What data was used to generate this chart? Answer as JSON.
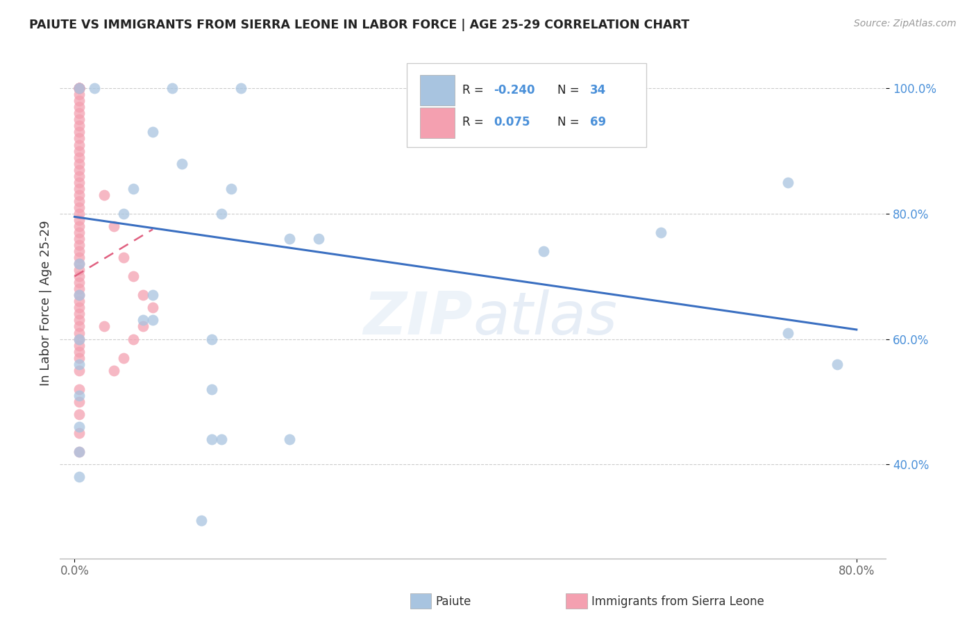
{
  "title": "PAIUTE VS IMMIGRANTS FROM SIERRA LEONE IN LABOR FORCE | AGE 25-29 CORRELATION CHART",
  "source": "Source: ZipAtlas.com",
  "ylabel": "In Labor Force | Age 25-29",
  "blue_color": "#a8c4e0",
  "pink_color": "#f4a0b0",
  "trendline_blue_color": "#3a6fc1",
  "trendline_pink_color": "#e06080",
  "watermark_color": "#d8e8f5",
  "grid_color": "#cccccc",
  "background_color": "#ffffff",
  "ytick_color": "#4a90d9",
  "xtick_color": "#666666",
  "blue_scatter": [
    [
      0.005,
      1.0
    ],
    [
      0.02,
      1.0
    ],
    [
      0.1,
      1.0
    ],
    [
      0.17,
      1.0
    ],
    [
      0.08,
      0.93
    ],
    [
      0.11,
      0.88
    ],
    [
      0.06,
      0.84
    ],
    [
      0.16,
      0.84
    ],
    [
      0.05,
      0.8
    ],
    [
      0.15,
      0.8
    ],
    [
      0.22,
      0.76
    ],
    [
      0.25,
      0.76
    ],
    [
      0.005,
      0.72
    ],
    [
      0.005,
      0.67
    ],
    [
      0.08,
      0.67
    ],
    [
      0.07,
      0.63
    ],
    [
      0.08,
      0.63
    ],
    [
      0.005,
      0.6
    ],
    [
      0.14,
      0.6
    ],
    [
      0.005,
      0.56
    ],
    [
      0.005,
      0.51
    ],
    [
      0.005,
      0.46
    ],
    [
      0.14,
      0.44
    ],
    [
      0.15,
      0.44
    ],
    [
      0.22,
      0.44
    ],
    [
      0.005,
      0.42
    ],
    [
      0.14,
      0.52
    ],
    [
      0.48,
      0.74
    ],
    [
      0.6,
      0.77
    ],
    [
      0.73,
      0.85
    ],
    [
      0.005,
      0.38
    ],
    [
      0.13,
      0.31
    ],
    [
      0.73,
      0.61
    ],
    [
      0.78,
      0.56
    ]
  ],
  "pink_scatter": [
    [
      0.005,
      1.0
    ],
    [
      0.005,
      1.0
    ],
    [
      0.005,
      1.0
    ],
    [
      0.005,
      1.0
    ],
    [
      0.005,
      1.0
    ],
    [
      0.005,
      1.0
    ],
    [
      0.005,
      1.0
    ],
    [
      0.005,
      1.0
    ],
    [
      0.005,
      0.99
    ],
    [
      0.005,
      0.98
    ],
    [
      0.005,
      0.97
    ],
    [
      0.005,
      0.96
    ],
    [
      0.005,
      0.95
    ],
    [
      0.005,
      0.94
    ],
    [
      0.005,
      0.93
    ],
    [
      0.005,
      0.92
    ],
    [
      0.005,
      0.91
    ],
    [
      0.005,
      0.9
    ],
    [
      0.005,
      0.89
    ],
    [
      0.005,
      0.88
    ],
    [
      0.005,
      0.87
    ],
    [
      0.005,
      0.86
    ],
    [
      0.005,
      0.85
    ],
    [
      0.005,
      0.84
    ],
    [
      0.005,
      0.83
    ],
    [
      0.005,
      0.82
    ],
    [
      0.005,
      0.81
    ],
    [
      0.005,
      0.8
    ],
    [
      0.005,
      0.79
    ],
    [
      0.005,
      0.78
    ],
    [
      0.005,
      0.77
    ],
    [
      0.005,
      0.76
    ],
    [
      0.005,
      0.75
    ],
    [
      0.005,
      0.74
    ],
    [
      0.005,
      0.73
    ],
    [
      0.005,
      0.72
    ],
    [
      0.005,
      0.71
    ],
    [
      0.005,
      0.7
    ],
    [
      0.005,
      0.69
    ],
    [
      0.005,
      0.68
    ],
    [
      0.005,
      0.67
    ],
    [
      0.005,
      0.66
    ],
    [
      0.005,
      0.65
    ],
    [
      0.005,
      0.64
    ],
    [
      0.005,
      0.63
    ],
    [
      0.005,
      0.62
    ],
    [
      0.005,
      0.61
    ],
    [
      0.005,
      0.6
    ],
    [
      0.005,
      0.59
    ],
    [
      0.005,
      0.58
    ],
    [
      0.005,
      0.57
    ],
    [
      0.005,
      0.55
    ],
    [
      0.005,
      0.52
    ],
    [
      0.005,
      0.5
    ],
    [
      0.005,
      0.48
    ],
    [
      0.005,
      0.45
    ],
    [
      0.005,
      0.42
    ],
    [
      0.03,
      0.83
    ],
    [
      0.04,
      0.78
    ],
    [
      0.05,
      0.73
    ],
    [
      0.06,
      0.7
    ],
    [
      0.07,
      0.67
    ],
    [
      0.08,
      0.65
    ],
    [
      0.07,
      0.62
    ],
    [
      0.06,
      0.6
    ],
    [
      0.05,
      0.57
    ],
    [
      0.04,
      0.55
    ],
    [
      0.03,
      0.62
    ]
  ],
  "blue_trend_x0": 0.0,
  "blue_trend_y0": 0.795,
  "blue_trend_x1": 0.8,
  "blue_trend_y1": 0.615,
  "pink_trend_x0": 0.0,
  "pink_trend_y0": 0.7,
  "pink_trend_x1": 0.08,
  "pink_trend_y1": 0.775,
  "xlim_min": -0.015,
  "xlim_max": 0.83,
  "ylim_min": 0.25,
  "ylim_max": 1.065,
  "xticks": [
    0.0,
    0.8
  ],
  "yticks": [
    0.4,
    0.6,
    0.8,
    1.0
  ],
  "xticklabels": [
    "0.0%",
    "80.0%"
  ],
  "yticklabels": [
    "40.0%",
    "60.0%",
    "80.0%",
    "100.0%"
  ]
}
